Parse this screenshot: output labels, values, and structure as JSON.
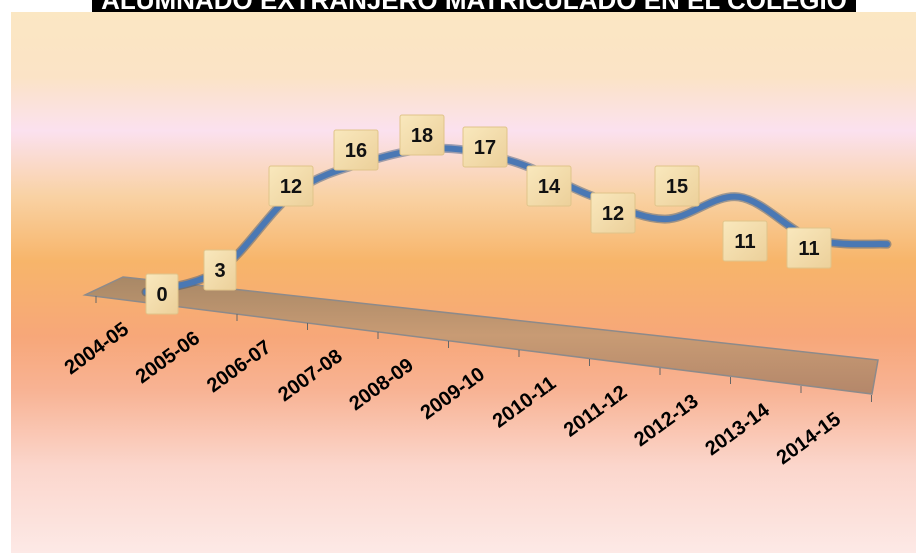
{
  "chart_data": {
    "type": "line",
    "title": "ALUMNADO EXTRANJERO MATRICULADO EN EL COLEGIO",
    "categories": [
      "2004-05",
      "2005-06",
      "2006-07",
      "2007-08",
      "2008-09",
      "2009-10",
      "2010-11",
      "2011-12",
      "2012-13",
      "2013-14",
      "2014-15"
    ],
    "series": [
      {
        "values": [
          0,
          3,
          12,
          16,
          18,
          17,
          14,
          12,
          15,
          11,
          11
        ]
      }
    ],
    "data_labels_shown": true,
    "ylim": [
      0,
      18
    ],
    "grid": false,
    "legend": "none",
    "style": "3d-line",
    "colors": {
      "line": "#4a78b4",
      "label_box": "#f5dfa8",
      "floor": "#c9986a"
    }
  }
}
